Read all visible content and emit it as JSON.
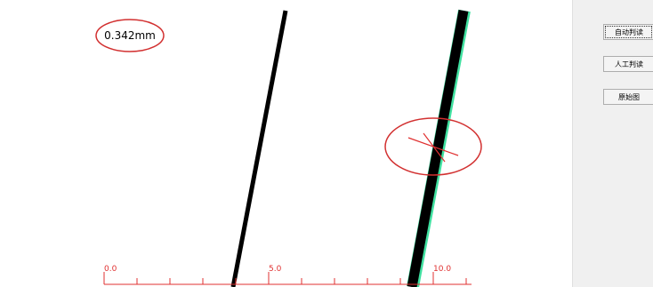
{
  "measurement": "0.342mm",
  "ruler": {
    "labels": [
      "0.0",
      "5.0",
      "10.0"
    ]
  },
  "buttons": [
    "自动判读",
    "人工判读",
    "原始图"
  ]
}
